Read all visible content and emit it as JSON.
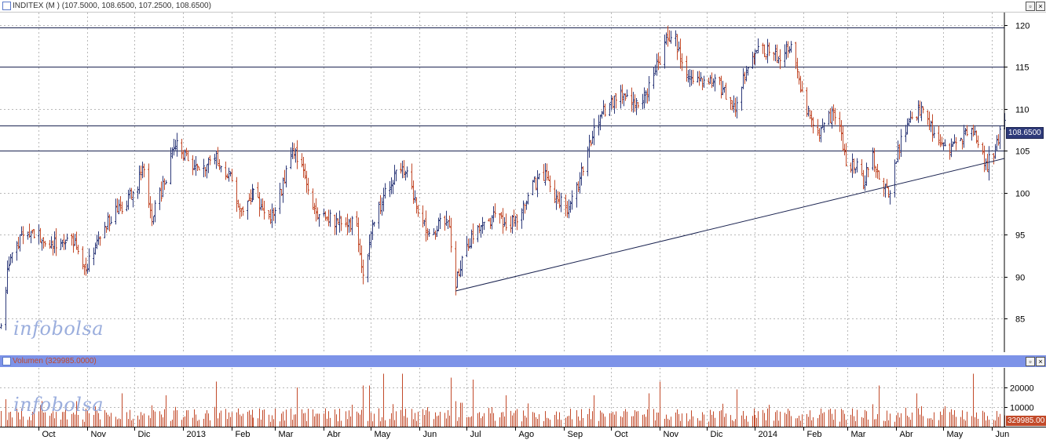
{
  "price_panel": {
    "title": "INDITEX (M ) (107.5000, 108.6500, 107.2500, 108.6500)",
    "last_price_tag": "108.6500"
  },
  "volume_panel": {
    "title": "Volumen (329985.0000)",
    "last_volume_tag": "329985.00"
  },
  "watermark": "infobolsa",
  "colors": {
    "up": "#2e3a7a",
    "down": "#c24a2a",
    "grid": "#b8b8b8",
    "hline": "#1a2350",
    "volume": "#c24a2a",
    "volume_header_bg": "#7d93e8"
  },
  "chart_data": [
    {
      "type": "ohlc",
      "title": "INDITEX (M ) (107.5000, 108.6500, 107.2500, 108.6500)",
      "ylim": [
        81,
        121.5
      ],
      "y_ticks": [
        85,
        90,
        95,
        100,
        105,
        110,
        115,
        120
      ],
      "x_range": [
        "2012-09-07",
        "2014-06-09"
      ],
      "months": [
        {
          "label": "Oct",
          "date": "2012-10-01"
        },
        {
          "label": "Nov",
          "date": "2012-11-01"
        },
        {
          "label": "Dic",
          "date": "2012-12-01"
        },
        {
          "label": "2013",
          "date": "2013-01-01"
        },
        {
          "label": "Feb",
          "date": "2013-02-01"
        },
        {
          "label": "Mar",
          "date": "2013-03-01"
        },
        {
          "label": "Abr",
          "date": "2013-04-01"
        },
        {
          "label": "May",
          "date": "2013-05-01"
        },
        {
          "label": "Jun",
          "date": "2013-06-01"
        },
        {
          "label": "Jul",
          "date": "2013-07-01"
        },
        {
          "label": "Ago",
          "date": "2013-08-01"
        },
        {
          "label": "Sep",
          "date": "2013-09-01"
        },
        {
          "label": "Oct",
          "date": "2013-10-01"
        },
        {
          "label": "Nov",
          "date": "2013-11-01"
        },
        {
          "label": "Dic",
          "date": "2013-12-01"
        },
        {
          "label": "2014",
          "date": "2014-01-01"
        },
        {
          "label": "Feb",
          "date": "2014-02-01"
        },
        {
          "label": "Mar",
          "date": "2014-03-01"
        },
        {
          "label": "Abr",
          "date": "2014-04-01"
        },
        {
          "label": "May",
          "date": "2014-05-01"
        },
        {
          "label": "Jun",
          "date": "2014-06-01"
        }
      ],
      "horizontal_lines": [
        119.7,
        115.0,
        108.0,
        105.0
      ],
      "trendline": {
        "start": {
          "date": "2013-06-24",
          "value": 88.3
        },
        "end": {
          "date": "2014-06-09",
          "value": 104.1
        }
      },
      "close_path": [
        [
          "2012-09-07",
          84
        ],
        [
          "2012-09-12",
          92
        ],
        [
          "2012-09-20",
          95
        ],
        [
          "2012-10-01",
          95
        ],
        [
          "2012-10-10",
          94
        ],
        [
          "2012-10-22",
          95
        ],
        [
          "2012-10-31",
          91
        ],
        [
          "2012-11-08",
          95
        ],
        [
          "2012-11-20",
          98
        ],
        [
          "2012-12-01",
          100
        ],
        [
          "2012-12-07",
          103
        ],
        [
          "2012-12-12",
          97
        ],
        [
          "2012-12-18",
          100
        ],
        [
          "2012-12-27",
          106
        ],
        [
          "2013-01-03",
          104
        ],
        [
          "2013-01-10",
          103
        ],
        [
          "2013-01-22",
          104
        ],
        [
          "2013-01-31",
          102
        ],
        [
          "2013-02-06",
          98
        ],
        [
          "2013-02-15",
          100
        ],
        [
          "2013-02-25",
          97
        ],
        [
          "2013-03-05",
          100
        ],
        [
          "2013-03-12",
          105
        ],
        [
          "2013-03-19",
          103
        ],
        [
          "2013-03-26",
          98
        ],
        [
          "2013-04-05",
          97
        ],
        [
          "2013-04-15",
          96
        ],
        [
          "2013-04-21",
          97
        ],
        [
          "2013-04-26",
          90
        ],
        [
          "2013-05-01",
          95
        ],
        [
          "2013-05-08",
          99
        ],
        [
          "2013-05-16",
          102
        ],
        [
          "2013-05-22",
          103
        ],
        [
          "2013-05-29",
          99
        ],
        [
          "2013-06-05",
          96
        ],
        [
          "2013-06-10",
          95
        ],
        [
          "2013-06-15",
          97
        ],
        [
          "2013-06-20",
          96
        ],
        [
          "2013-06-24",
          89
        ],
        [
          "2013-06-28",
          92
        ],
        [
          "2013-07-08",
          96
        ],
        [
          "2013-07-18",
          97
        ],
        [
          "2013-07-28",
          96
        ],
        [
          "2013-08-05",
          98
        ],
        [
          "2013-08-12",
          101
        ],
        [
          "2013-08-20",
          102
        ],
        [
          "2013-08-28",
          99
        ],
        [
          "2013-09-04",
          98
        ],
        [
          "2013-09-10",
          101
        ],
        [
          "2013-09-17",
          106
        ],
        [
          "2013-09-24",
          109
        ],
        [
          "2013-10-02",
          111
        ],
        [
          "2013-10-09",
          112
        ],
        [
          "2013-10-16",
          110
        ],
        [
          "2013-10-23",
          112
        ],
        [
          "2013-10-30",
          115
        ],
        [
          "2013-11-05",
          118
        ],
        [
          "2013-11-10",
          119
        ],
        [
          "2013-11-15",
          115
        ],
        [
          "2013-11-20",
          114
        ],
        [
          "2013-11-28",
          113
        ],
        [
          "2013-12-05",
          114
        ],
        [
          "2013-12-12",
          112
        ],
        [
          "2013-12-19",
          110
        ],
        [
          "2013-12-25",
          114
        ],
        [
          "2014-01-03",
          117
        ],
        [
          "2014-01-10",
          117
        ],
        [
          "2014-01-17",
          116
        ],
        [
          "2014-01-24",
          118
        ],
        [
          "2014-01-28",
          114
        ],
        [
          "2014-01-31",
          112
        ],
        [
          "2014-02-05",
          109
        ],
        [
          "2014-02-10",
          107
        ],
        [
          "2014-02-15",
          109
        ],
        [
          "2014-02-22",
          109
        ],
        [
          "2014-02-28",
          104
        ],
        [
          "2014-03-07",
          103
        ],
        [
          "2014-03-11",
          101
        ],
        [
          "2014-03-16",
          105
        ],
        [
          "2014-03-21",
          102
        ],
        [
          "2014-03-28",
          100
        ],
        [
          "2014-04-02",
          105
        ],
        [
          "2014-04-08",
          108
        ],
        [
          "2014-04-14",
          109
        ],
        [
          "2014-04-19",
          111
        ],
        [
          "2014-04-24",
          107
        ],
        [
          "2014-05-02",
          105
        ],
        [
          "2014-05-09",
          106
        ],
        [
          "2014-05-16",
          107
        ],
        [
          "2014-05-22",
          107
        ],
        [
          "2014-05-28",
          103
        ],
        [
          "2014-06-02",
          105
        ],
        [
          "2014-06-06",
          107
        ],
        [
          "2014-06-09",
          108.65
        ]
      ]
    },
    {
      "type": "bar",
      "title": "Volumen (329985.0000)",
      "ylim": [
        0,
        30000
      ],
      "y_ticks": [
        10000,
        20000
      ],
      "baseline": 5500,
      "spikes": [
        [
          "2012-09-10",
          14000
        ],
        [
          "2012-10-25",
          13000
        ],
        [
          "2012-11-23",
          17000
        ],
        [
          "2012-12-21",
          16000
        ],
        [
          "2013-01-22",
          23000
        ],
        [
          "2013-03-15",
          20000
        ],
        [
          "2013-04-26",
          21000
        ],
        [
          "2013-04-30",
          21000
        ],
        [
          "2013-05-09",
          27000
        ],
        [
          "2013-05-21",
          27000
        ],
        [
          "2013-06-21",
          25000
        ],
        [
          "2013-07-05",
          24000
        ],
        [
          "2013-07-26",
          16000
        ],
        [
          "2013-09-20",
          16000
        ],
        [
          "2013-10-25",
          17000
        ],
        [
          "2013-11-01",
          23000
        ],
        [
          "2013-12-20",
          19000
        ],
        [
          "2014-03-21",
          21000
        ],
        [
          "2014-04-14",
          17000
        ],
        [
          "2014-05-20",
          27000
        ]
      ]
    }
  ]
}
